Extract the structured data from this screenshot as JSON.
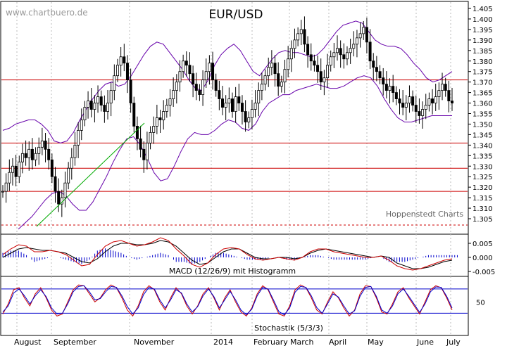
{
  "header": {
    "title": "EUR/USD",
    "watermark": "www.chartbuero.de",
    "source": "Hoppenstedt Charts"
  },
  "chart_data": [
    {
      "type": "candlestick",
      "title": "EUR/USD",
      "ylim": [
        1.3,
        1.405
      ],
      "y_ticks": [
        "1.405",
        "1.400",
        "1.395",
        "1.390",
        "1.385",
        "1.380",
        "1.375",
        "1.370",
        "1.365",
        "1.360",
        "1.355",
        "1.350",
        "1.345",
        "1.340",
        "1.335",
        "1.330",
        "1.325",
        "1.320",
        "1.315",
        "1.310",
        "1.305"
      ],
      "x_labels": [
        "August",
        "September",
        "November",
        "2014",
        "February",
        "March",
        "April",
        "May",
        "June",
        "July"
      ],
      "horizontal_lines": [
        1.371,
        1.341,
        1.329,
        1.318
      ],
      "dashed_line": 1.302,
      "close_series": [
        1.318,
        1.322,
        1.327,
        1.33,
        1.325,
        1.332,
        1.336,
        1.334,
        1.338,
        1.333,
        1.336,
        1.339,
        1.342,
        1.338,
        1.333,
        1.325,
        1.318,
        1.312,
        1.315,
        1.322,
        1.329,
        1.334,
        1.34,
        1.347,
        1.352,
        1.358,
        1.361,
        1.357,
        1.36,
        1.363,
        1.359,
        1.356,
        1.36,
        1.366,
        1.373,
        1.378,
        1.382,
        1.379,
        1.371,
        1.36,
        1.349,
        1.343,
        1.338,
        1.333,
        1.341,
        1.346,
        1.349,
        1.353,
        1.352,
        1.356,
        1.359,
        1.362,
        1.366,
        1.37,
        1.375,
        1.38,
        1.378,
        1.374,
        1.369,
        1.366,
        1.364,
        1.371,
        1.375,
        1.379,
        1.371,
        1.366,
        1.362,
        1.358,
        1.36,
        1.362,
        1.356,
        1.363,
        1.36,
        1.356,
        1.351,
        1.353,
        1.357,
        1.36,
        1.366,
        1.369,
        1.373,
        1.377,
        1.379,
        1.374,
        1.368,
        1.37,
        1.376,
        1.381,
        1.386,
        1.39,
        1.393,
        1.395,
        1.388,
        1.383,
        1.38,
        1.378,
        1.375,
        1.37,
        1.372,
        1.378,
        1.382,
        1.384,
        1.386,
        1.383,
        1.381,
        1.384,
        1.386,
        1.388,
        1.391,
        1.393,
        1.396,
        1.389,
        1.38,
        1.377,
        1.375,
        1.372,
        1.369,
        1.366,
        1.368,
        1.365,
        1.362,
        1.36,
        1.358,
        1.36,
        1.363,
        1.359,
        1.356,
        1.354,
        1.357,
        1.359,
        1.362,
        1.36,
        1.363,
        1.366,
        1.369,
        1.366,
        1.361,
        1.36
      ],
      "bollinger_upper": [
        1.347,
        1.348,
        1.35,
        1.351,
        1.352,
        1.352,
        1.35,
        1.347,
        1.342,
        1.341,
        1.342,
        1.346,
        1.352,
        1.357,
        1.362,
        1.366,
        1.369,
        1.37,
        1.368,
        1.369,
        1.373,
        1.378,
        1.383,
        1.387,
        1.389,
        1.388,
        1.384,
        1.38,
        1.376,
        1.371,
        1.367,
        1.366,
        1.371,
        1.378,
        1.383,
        1.386,
        1.388,
        1.385,
        1.38,
        1.375,
        1.373,
        1.377,
        1.381,
        1.384,
        1.385,
        1.384,
        1.384,
        1.383,
        1.382,
        1.383,
        1.386,
        1.39,
        1.394,
        1.397,
        1.398,
        1.399,
        1.398,
        1.394,
        1.39,
        1.388,
        1.387,
        1.387,
        1.386,
        1.383,
        1.379,
        1.376,
        1.372,
        1.37,
        1.371,
        1.373,
        1.375
      ],
      "bollinger_lower": [
        1.3,
        1.303,
        1.306,
        1.31,
        1.314,
        1.317,
        1.318,
        1.316,
        1.312,
        1.309,
        1.309,
        1.313,
        1.319,
        1.325,
        1.332,
        1.338,
        1.343,
        1.344,
        1.34,
        1.334,
        1.327,
        1.323,
        1.324,
        1.33,
        1.337,
        1.343,
        1.346,
        1.345,
        1.345,
        1.347,
        1.35,
        1.352,
        1.351,
        1.348,
        1.347,
        1.35,
        1.356,
        1.36,
        1.362,
        1.364,
        1.364,
        1.366,
        1.367,
        1.368,
        1.369,
        1.368,
        1.367,
        1.367,
        1.368,
        1.37,
        1.372,
        1.373,
        1.372,
        1.368,
        1.362,
        1.357,
        1.353,
        1.351,
        1.351,
        1.352,
        1.353,
        1.354,
        1.354,
        1.354,
        1.354
      ]
    },
    {
      "type": "line",
      "title": "MACD (12/26/9) mit Histogramm",
      "ylim": [
        -0.006,
        0.007
      ],
      "y_ticks": [
        "0.005",
        "0.000",
        "-0.005"
      ],
      "series": [
        {
          "color": "#cc0000",
          "values": [
            0.001,
            0.003,
            0.0045,
            0.004,
            0.002,
            0.002,
            0.0025,
            0.002,
            0.001,
            -0.001,
            -0.003,
            -0.0025,
            0.001,
            0.004,
            0.0055,
            0.006,
            0.005,
            0.004,
            0.0045,
            0.0055,
            0.007,
            0.006,
            0.003,
            0.0005,
            -0.0025,
            -0.0035,
            -0.002,
            0.001,
            0.003,
            0.0035,
            0.003,
            0.001,
            -0.0005,
            -0.001,
            -0.0005,
            0.0,
            -0.0005,
            -0.001,
            0.0,
            0.002,
            0.003,
            0.003,
            0.002,
            0.0015,
            0.001,
            0.0005,
            0.0,
            0.0,
            0.0005,
            -0.001,
            -0.003,
            -0.004,
            -0.0045,
            -0.004,
            -0.003,
            -0.002,
            -0.001,
            -0.0005
          ]
        },
        {
          "color": "#000000",
          "values": [
            0.0,
            0.0015,
            0.003,
            0.0035,
            0.003,
            0.0025,
            0.0025,
            0.002,
            0.0015,
            0.0,
            -0.0015,
            -0.002,
            -0.0005,
            0.002,
            0.004,
            0.005,
            0.005,
            0.0045,
            0.0045,
            0.005,
            0.006,
            0.0055,
            0.004,
            0.0015,
            -0.001,
            -0.0025,
            -0.002,
            0.0,
            0.002,
            0.003,
            0.003,
            0.0015,
            0.0,
            -0.0005,
            -0.0005,
            0.0,
            0.0,
            -0.0005,
            0.0,
            0.0015,
            0.0025,
            0.003,
            0.0025,
            0.002,
            0.0015,
            0.001,
            0.0005,
            0.0,
            0.0005,
            0.0,
            -0.002,
            -0.003,
            -0.004,
            -0.004,
            -0.0035,
            -0.0025,
            -0.0015,
            -0.001
          ]
        }
      ]
    },
    {
      "type": "line",
      "title": "Stochastik (5/3/3)",
      "ylim": [
        0,
        105
      ],
      "y_ticks": [
        "50"
      ],
      "reference_lines": [
        80,
        20
      ],
      "series": [
        {
          "color": "#cc0000",
          "values": [
            20,
            45,
            80,
            85,
            60,
            40,
            70,
            85,
            60,
            30,
            15,
            20,
            50,
            80,
            92,
            90,
            70,
            50,
            60,
            80,
            92,
            85,
            60,
            30,
            15,
            40,
            75,
            90,
            80,
            50,
            30,
            60,
            85,
            70,
            40,
            20,
            40,
            70,
            85,
            60,
            30,
            60,
            80,
            50,
            25,
            15,
            35,
            70,
            90,
            80,
            50,
            20,
            15,
            40,
            80,
            92,
            85,
            60,
            30,
            20,
            50,
            75,
            60,
            35,
            15,
            30,
            70,
            90,
            88,
            60,
            25,
            20,
            45,
            75,
            85,
            60,
            40,
            20,
            50,
            80,
            90,
            85,
            60,
            30
          ]
        },
        {
          "color": "#0000cc",
          "values": [
            25,
            40,
            72,
            82,
            65,
            45,
            65,
            80,
            63,
            35,
            20,
            22,
            45,
            75,
            88,
            90,
            75,
            55,
            58,
            75,
            88,
            86,
            65,
            38,
            20,
            35,
            68,
            86,
            82,
            55,
            35,
            55,
            80,
            72,
            45,
            25,
            38,
            65,
            82,
            63,
            35,
            55,
            76,
            55,
            30,
            18,
            32,
            65,
            86,
            82,
            55,
            26,
            18,
            35,
            74,
            88,
            86,
            65,
            36,
            22,
            45,
            70,
            62,
            40,
            20,
            28,
            64,
            86,
            88,
            64,
            30,
            22,
            40,
            70,
            82,
            64,
            44,
            24,
            45,
            75,
            87,
            86,
            64,
            35
          ]
        }
      ]
    }
  ]
}
